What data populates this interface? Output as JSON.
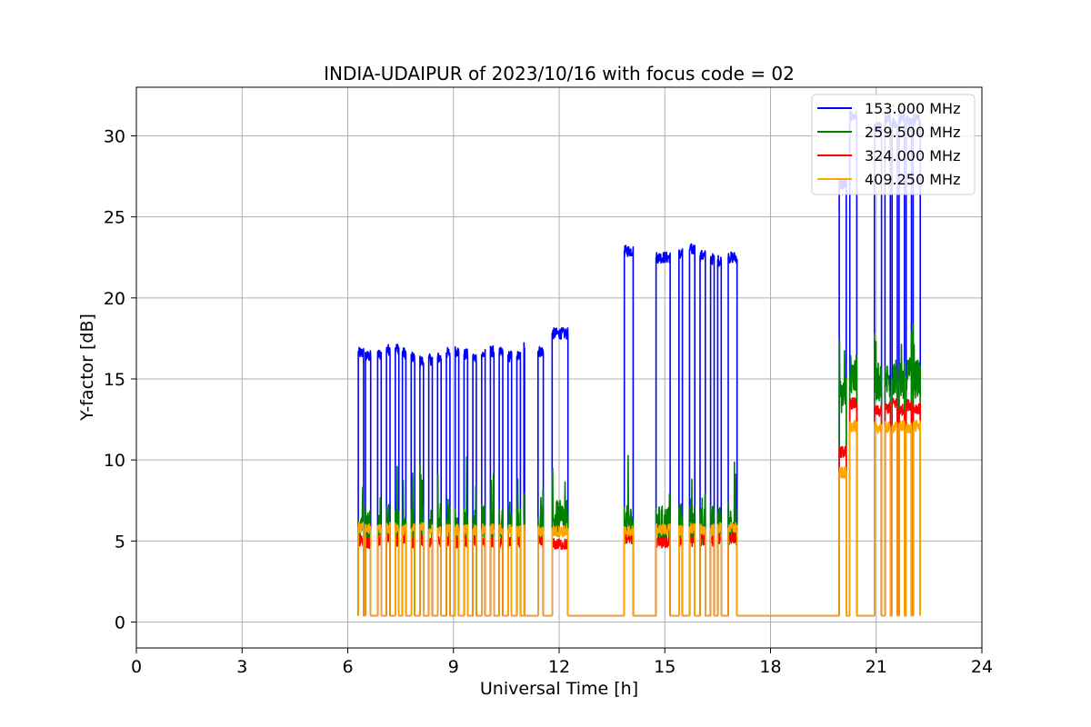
{
  "chart_data": {
    "type": "line",
    "title": "INDIA-UDAIPUR of 2023/10/16 with focus code = 02",
    "xlabel": "Universal Time [h]",
    "ylabel": "Y-factor [dB]",
    "xlim": [
      0,
      24
    ],
    "ylim": [
      -1.6,
      33
    ],
    "xticks": [
      "0",
      "3",
      "6",
      "9",
      "12",
      "15",
      "18",
      "21",
      "24"
    ],
    "xtick_values": [
      0,
      3,
      6,
      9,
      12,
      15,
      18,
      21,
      24
    ],
    "yticks": [
      "0",
      "5",
      "10",
      "15",
      "20",
      "25",
      "30"
    ],
    "ytick_values": [
      0,
      5,
      10,
      15,
      20,
      25,
      30
    ],
    "grid": true,
    "legend_position": "top-right",
    "baseline": 0.4,
    "series": [
      {
        "name": "153.000 MHz",
        "color": "#0000ff",
        "blocks": [
          [
            6.3,
            6.45,
            16.6
          ],
          [
            6.5,
            6.65,
            16.4
          ],
          [
            6.85,
            6.95,
            16.5
          ],
          [
            7.1,
            7.2,
            16.8
          ],
          [
            7.35,
            7.45,
            16.9
          ],
          [
            7.55,
            7.65,
            16.6
          ],
          [
            7.8,
            7.9,
            16.3
          ],
          [
            8.05,
            8.15,
            16.1
          ],
          [
            8.3,
            8.4,
            16.2
          ],
          [
            8.55,
            8.65,
            16.3
          ],
          [
            8.8,
            8.9,
            16.6
          ],
          [
            9.05,
            9.15,
            16.7
          ],
          [
            9.3,
            9.4,
            16.5
          ],
          [
            9.55,
            9.65,
            16.3
          ],
          [
            9.8,
            9.9,
            16.5
          ],
          [
            10.05,
            10.15,
            16.7
          ],
          [
            10.3,
            10.4,
            16.6
          ],
          [
            10.55,
            10.65,
            16.4
          ],
          [
            10.8,
            10.9,
            16.4
          ],
          [
            11.0,
            11.02,
            17.0
          ],
          [
            11.4,
            11.55,
            16.7
          ],
          [
            11.8,
            12.25,
            17.8
          ],
          [
            13.85,
            14.1,
            22.9
          ],
          [
            14.75,
            15.15,
            22.5
          ],
          [
            15.4,
            15.5,
            22.7
          ],
          [
            15.7,
            15.85,
            23.0
          ],
          [
            16.0,
            16.15,
            22.6
          ],
          [
            16.3,
            16.4,
            22.4
          ],
          [
            16.5,
            16.6,
            22.3
          ],
          [
            16.8,
            17.05,
            22.5
          ],
          [
            19.95,
            20.15,
            27.0
          ],
          [
            20.25,
            20.45,
            31.2
          ],
          [
            20.95,
            21.15,
            30.5
          ],
          [
            21.25,
            21.4,
            31.0
          ],
          [
            21.45,
            21.6,
            30.8
          ],
          [
            21.65,
            21.8,
            31.1
          ],
          [
            21.85,
            22.0,
            30.9
          ],
          [
            22.05,
            22.25,
            31.0
          ]
        ]
      },
      {
        "name": "259.500 MHz",
        "color": "#008000",
        "blocks": [
          [
            6.3,
            6.45,
            6.2
          ],
          [
            6.5,
            6.65,
            5.9
          ],
          [
            6.85,
            6.95,
            6.0
          ],
          [
            7.1,
            7.2,
            6.1
          ],
          [
            7.35,
            7.45,
            6.0
          ],
          [
            7.55,
            7.65,
            6.2
          ],
          [
            7.8,
            7.9,
            6.0
          ],
          [
            8.05,
            8.15,
            6.1
          ],
          [
            8.3,
            8.4,
            5.9
          ],
          [
            8.55,
            8.65,
            6.0
          ],
          [
            8.8,
            8.9,
            6.1
          ],
          [
            9.05,
            9.15,
            6.0
          ],
          [
            9.3,
            9.4,
            5.9
          ],
          [
            9.55,
            9.65,
            6.0
          ],
          [
            9.8,
            9.9,
            6.1
          ],
          [
            10.05,
            10.15,
            6.0
          ],
          [
            10.3,
            10.4,
            5.9
          ],
          [
            10.55,
            10.65,
            6.0
          ],
          [
            10.8,
            10.9,
            6.0
          ],
          [
            11.0,
            11.02,
            6.0
          ],
          [
            11.4,
            11.55,
            6.0
          ],
          [
            11.8,
            12.25,
            6.3
          ],
          [
            13.85,
            14.1,
            6.0
          ],
          [
            14.75,
            15.15,
            6.0
          ],
          [
            15.4,
            15.5,
            6.1
          ],
          [
            15.7,
            15.85,
            6.0
          ],
          [
            16.0,
            16.15,
            5.9
          ],
          [
            16.3,
            16.4,
            6.0
          ],
          [
            16.5,
            16.6,
            6.0
          ],
          [
            16.8,
            17.05,
            5.9
          ],
          [
            19.95,
            20.15,
            14.0
          ],
          [
            20.25,
            20.45,
            15.3
          ],
          [
            20.95,
            21.15,
            14.8
          ],
          [
            21.25,
            21.4,
            14.9
          ],
          [
            21.45,
            21.6,
            15.0
          ],
          [
            21.65,
            21.8,
            14.8
          ],
          [
            21.85,
            22.0,
            15.1
          ],
          [
            22.05,
            22.25,
            15.0
          ]
        ]
      },
      {
        "name": "324.000 MHz",
        "color": "#ff0000",
        "blocks": [
          [
            6.3,
            6.45,
            5.0
          ],
          [
            6.5,
            6.65,
            4.9
          ],
          [
            6.85,
            6.95,
            5.0
          ],
          [
            7.1,
            7.2,
            5.1
          ],
          [
            7.35,
            7.45,
            5.0
          ],
          [
            7.55,
            7.65,
            5.2
          ],
          [
            7.8,
            7.9,
            4.9
          ],
          [
            8.05,
            8.15,
            5.0
          ],
          [
            8.3,
            8.4,
            4.9
          ],
          [
            8.55,
            8.65,
            5.0
          ],
          [
            8.8,
            8.9,
            5.0
          ],
          [
            9.05,
            9.15,
            4.9
          ],
          [
            9.3,
            9.4,
            4.9
          ],
          [
            9.55,
            9.65,
            5.0
          ],
          [
            9.8,
            9.9,
            4.9
          ],
          [
            10.05,
            10.15,
            4.9
          ],
          [
            10.3,
            10.4,
            4.9
          ],
          [
            10.55,
            10.65,
            4.9
          ],
          [
            10.8,
            10.9,
            4.8
          ],
          [
            11.0,
            11.02,
            4.9
          ],
          [
            11.4,
            11.55,
            4.9
          ],
          [
            11.8,
            12.25,
            4.8
          ],
          [
            13.85,
            14.1,
            5.2
          ],
          [
            14.75,
            15.15,
            4.9
          ],
          [
            15.4,
            15.5,
            5.0
          ],
          [
            15.7,
            15.85,
            5.0
          ],
          [
            16.0,
            16.15,
            5.1
          ],
          [
            16.3,
            16.4,
            5.0
          ],
          [
            16.5,
            16.6,
            5.2
          ],
          [
            16.8,
            17.05,
            5.2
          ],
          [
            19.95,
            20.15,
            10.5
          ],
          [
            20.25,
            20.45,
            13.5
          ],
          [
            20.95,
            21.15,
            13.0
          ],
          [
            21.25,
            21.4,
            13.2
          ],
          [
            21.45,
            21.6,
            13.5
          ],
          [
            21.65,
            21.8,
            13.1
          ],
          [
            21.85,
            22.0,
            13.4
          ],
          [
            22.05,
            22.25,
            13.2
          ]
        ]
      },
      {
        "name": "409.250 MHz",
        "color": "#ffa500",
        "blocks": [
          [
            6.3,
            6.45,
            5.8
          ],
          [
            6.5,
            6.65,
            5.7
          ],
          [
            6.85,
            6.95,
            5.8
          ],
          [
            7.1,
            7.2,
            5.8
          ],
          [
            7.35,
            7.45,
            5.8
          ],
          [
            7.55,
            7.65,
            5.7
          ],
          [
            7.8,
            7.9,
            5.7
          ],
          [
            8.05,
            8.15,
            5.8
          ],
          [
            8.3,
            8.4,
            5.7
          ],
          [
            8.55,
            8.65,
            5.7
          ],
          [
            8.8,
            8.9,
            5.7
          ],
          [
            9.05,
            9.15,
            5.7
          ],
          [
            9.3,
            9.4,
            5.7
          ],
          [
            9.55,
            9.65,
            5.7
          ],
          [
            9.8,
            9.9,
            5.7
          ],
          [
            10.05,
            10.15,
            5.7
          ],
          [
            10.3,
            10.4,
            5.7
          ],
          [
            10.55,
            10.65,
            5.7
          ],
          [
            10.8,
            10.9,
            5.6
          ],
          [
            11.0,
            11.02,
            5.7
          ],
          [
            11.4,
            11.55,
            5.6
          ],
          [
            11.8,
            12.25,
            5.6
          ],
          [
            13.85,
            14.1,
            5.6
          ],
          [
            14.75,
            15.15,
            5.7
          ],
          [
            15.4,
            15.5,
            5.7
          ],
          [
            15.7,
            15.85,
            5.8
          ],
          [
            16.0,
            16.15,
            5.7
          ],
          [
            16.3,
            16.4,
            5.7
          ],
          [
            16.5,
            16.6,
            5.8
          ],
          [
            16.8,
            17.05,
            5.8
          ],
          [
            19.95,
            20.15,
            9.2
          ],
          [
            20.25,
            20.45,
            12.1
          ],
          [
            20.95,
            21.15,
            12.0
          ],
          [
            21.25,
            21.4,
            12.0
          ],
          [
            21.45,
            21.6,
            12.0
          ],
          [
            21.65,
            21.8,
            12.1
          ],
          [
            21.85,
            22.0,
            12.0
          ],
          [
            22.05,
            22.25,
            12.1
          ]
        ]
      }
    ]
  }
}
